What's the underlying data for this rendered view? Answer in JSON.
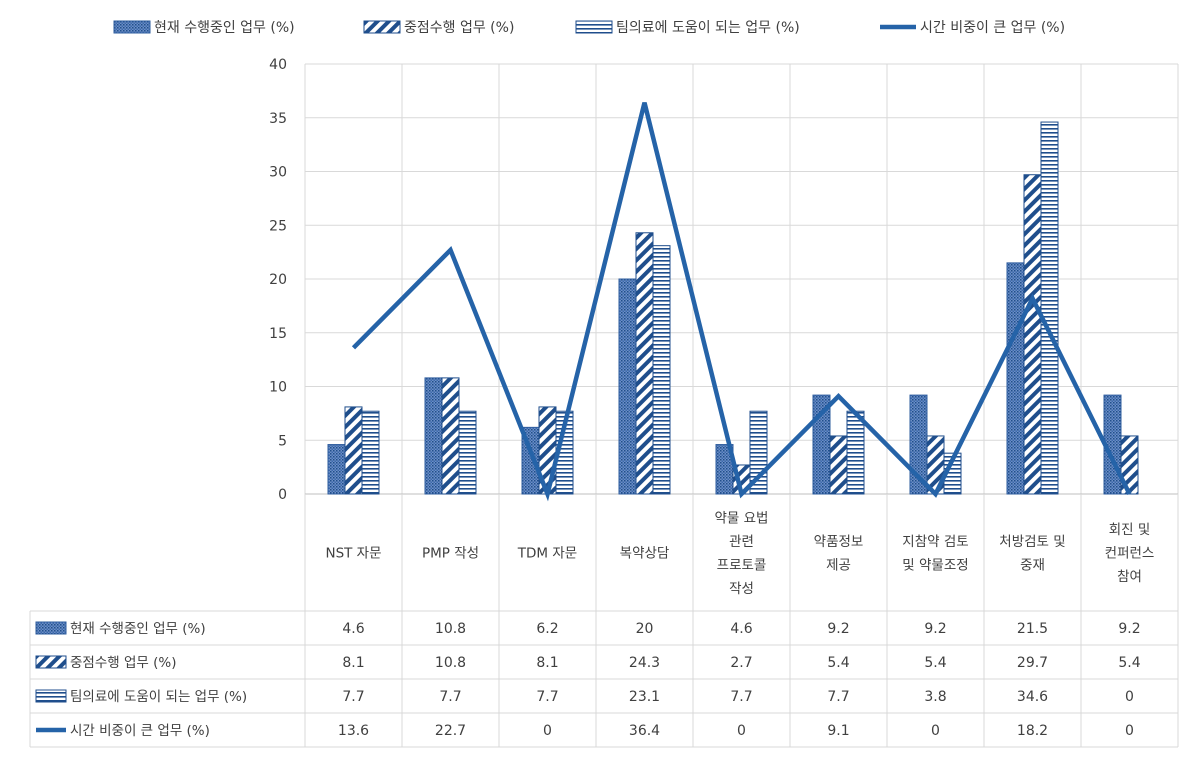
{
  "chart_data": {
    "type": "bar",
    "title": "",
    "xlabel": "",
    "ylabel": "",
    "ylim": [
      0,
      40
    ],
    "yticks": [
      0,
      5,
      10,
      15,
      20,
      25,
      30,
      35,
      40
    ],
    "grid": true,
    "legend_position": "top",
    "data_table": true,
    "categories": [
      [
        "NST 자문"
      ],
      [
        "PMP 작성"
      ],
      [
        "TDM 자문"
      ],
      [
        "복약상담"
      ],
      [
        "약물 요법",
        "관련",
        "프로토콜",
        "작성"
      ],
      [
        "약품정보",
        "제공"
      ],
      [
        "지참약 검토",
        "및 약물조정"
      ],
      [
        "처방검토 및",
        "중재"
      ],
      [
        "회진 및",
        "컨퍼런스",
        "참여"
      ]
    ],
    "series": [
      {
        "name": "현재 수행중인 업무 (%)",
        "kind": "bar",
        "pattern": "dots",
        "color": "#2e5c9e",
        "values": [
          4.6,
          10.8,
          6.2,
          20,
          4.6,
          9.2,
          9.2,
          21.5,
          9.2
        ]
      },
      {
        "name": "중점수행 업무 (%)",
        "kind": "bar",
        "pattern": "diagonal",
        "color": "#1f4e8c",
        "values": [
          8.1,
          10.8,
          8.1,
          24.3,
          2.7,
          5.4,
          5.4,
          29.7,
          5.4
        ]
      },
      {
        "name": "팀의료에 도움이 되는 업무 (%)",
        "kind": "bar",
        "pattern": "horizontal",
        "color": "#1f4e8c",
        "values": [
          7.7,
          7.7,
          7.7,
          23.1,
          7.7,
          7.7,
          3.8,
          34.6,
          0
        ]
      },
      {
        "name": "시간 비중이 큰 업무 (%)",
        "kind": "line",
        "color": "#2563a8",
        "values": [
          13.6,
          22.7,
          0,
          36.4,
          0,
          9.1,
          0,
          18.2,
          0
        ]
      }
    ]
  }
}
